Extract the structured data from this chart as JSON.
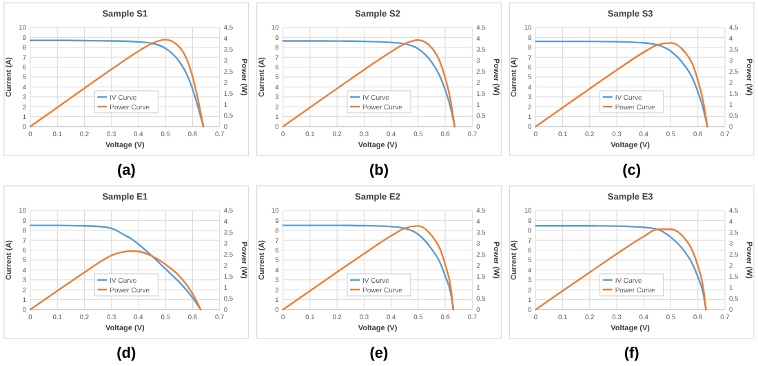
{
  "chart_data": [
    {
      "type": "line",
      "title": "Sample S1",
      "xlabel": "Voltage (V)",
      "ylabel": "Current (A)",
      "y2label": "Power (W)",
      "xlim": [
        0,
        0.7
      ],
      "xticks": [
        0,
        0.1,
        0.2,
        0.3,
        0.4,
        0.5,
        0.6,
        0.7
      ],
      "ylim": [
        0,
        10
      ],
      "yticks": [
        0,
        1,
        2,
        3,
        4,
        5,
        6,
        7,
        8,
        9,
        10
      ],
      "y2lim": [
        0,
        4.5
      ],
      "y2ticks": [
        0,
        0.5,
        1,
        1.5,
        2,
        2.5,
        3,
        3.5,
        4,
        4.5
      ],
      "grid": true,
      "legend": "center",
      "annotations": [
        "(a)"
      ],
      "series": [
        {
          "name": "IV Curve",
          "color": "#5b9bd5",
          "x": [
            0,
            0.1,
            0.2,
            0.3,
            0.4,
            0.45,
            0.5,
            0.55,
            0.58,
            0.6,
            0.62,
            0.64
          ],
          "values": [
            8.7,
            8.7,
            8.68,
            8.65,
            8.55,
            8.4,
            7.9,
            6.6,
            5.2,
            3.8,
            2.0,
            0
          ]
        },
        {
          "name": "Power Curve",
          "color": "#ed7d31",
          "axis": "y2",
          "x": [
            0,
            0.1,
            0.2,
            0.3,
            0.4,
            0.45,
            0.5,
            0.55,
            0.58,
            0.6,
            0.62,
            0.64
          ],
          "values": [
            0,
            0.87,
            1.74,
            2.6,
            3.42,
            3.78,
            3.95,
            3.63,
            3.02,
            2.28,
            1.24,
            0
          ]
        }
      ]
    },
    {
      "type": "line",
      "title": "Sample S2",
      "xlabel": "Voltage (V)",
      "ylabel": "Current (A)",
      "y2label": "Power (W)",
      "xlim": [
        0,
        0.7
      ],
      "xticks": [
        0,
        0.1,
        0.2,
        0.3,
        0.4,
        0.5,
        0.6,
        0.7
      ],
      "ylim": [
        0,
        10
      ],
      "yticks": [
        0,
        1,
        2,
        3,
        4,
        5,
        6,
        7,
        8,
        9,
        10
      ],
      "y2lim": [
        0,
        4.5
      ],
      "y2ticks": [
        0,
        0.5,
        1,
        1.5,
        2,
        2.5,
        3,
        3.5,
        4,
        4.5
      ],
      "grid": true,
      "legend": "center",
      "annotations": [
        "(b)"
      ],
      "series": [
        {
          "name": "IV Curve",
          "color": "#5b9bd5",
          "x": [
            0,
            0.1,
            0.2,
            0.3,
            0.4,
            0.45,
            0.5,
            0.55,
            0.58,
            0.6,
            0.62,
            0.635
          ],
          "values": [
            8.65,
            8.65,
            8.64,
            8.6,
            8.5,
            8.35,
            7.85,
            6.5,
            5.1,
            3.7,
            1.9,
            0
          ]
        },
        {
          "name": "Power Curve",
          "color": "#ed7d31",
          "axis": "y2",
          "x": [
            0,
            0.1,
            0.2,
            0.3,
            0.4,
            0.45,
            0.5,
            0.55,
            0.58,
            0.6,
            0.62,
            0.635
          ],
          "values": [
            0,
            0.87,
            1.73,
            2.58,
            3.4,
            3.76,
            3.93,
            3.58,
            2.96,
            2.22,
            1.18,
            0
          ]
        }
      ]
    },
    {
      "type": "line",
      "title": "Sample S3",
      "xlabel": "Voltage (V)",
      "ylabel": "Current (A)",
      "y2label": "Power (W)",
      "xlim": [
        0,
        0.7
      ],
      "xticks": [
        0,
        0.1,
        0.2,
        0.3,
        0.4,
        0.5,
        0.6,
        0.7
      ],
      "ylim": [
        0,
        10
      ],
      "yticks": [
        0,
        1,
        2,
        3,
        4,
        5,
        6,
        7,
        8,
        9,
        10
      ],
      "y2lim": [
        0,
        4.5
      ],
      "y2ticks": [
        0,
        0.5,
        1,
        1.5,
        2,
        2.5,
        3,
        3.5,
        4,
        4.5
      ],
      "grid": true,
      "legend": "center",
      "annotations": [
        "(c)"
      ],
      "series": [
        {
          "name": "IV Curve",
          "color": "#5b9bd5",
          "x": [
            0,
            0.1,
            0.2,
            0.3,
            0.4,
            0.45,
            0.5,
            0.55,
            0.58,
            0.6,
            0.62,
            0.635
          ],
          "values": [
            8.6,
            8.6,
            8.6,
            8.57,
            8.45,
            8.25,
            7.6,
            6.2,
            4.9,
            3.5,
            1.8,
            0
          ]
        },
        {
          "name": "Power Curve",
          "color": "#ed7d31",
          "axis": "y2",
          "x": [
            0,
            0.1,
            0.2,
            0.3,
            0.4,
            0.45,
            0.5,
            0.55,
            0.58,
            0.6,
            0.62,
            0.635
          ],
          "values": [
            0,
            0.86,
            1.72,
            2.57,
            3.38,
            3.71,
            3.8,
            3.41,
            2.84,
            2.1,
            1.12,
            0
          ]
        }
      ]
    },
    {
      "type": "line",
      "title": "Sample E1",
      "xlabel": "Voltage (V)",
      "ylabel": "Current (A)",
      "y2label": "Power (W)",
      "xlim": [
        0,
        0.7
      ],
      "xticks": [
        0,
        0.1,
        0.2,
        0.3,
        0.4,
        0.5,
        0.6,
        0.7
      ],
      "ylim": [
        0,
        10
      ],
      "yticks": [
        0,
        1,
        2,
        3,
        4,
        5,
        6,
        7,
        8,
        9,
        10
      ],
      "y2lim": [
        0,
        4.5
      ],
      "y2ticks": [
        0,
        0.5,
        1,
        1.5,
        2,
        2.5,
        3,
        3.5,
        4,
        4.5
      ],
      "grid": true,
      "legend": "center",
      "annotations": [
        "(d)"
      ],
      "series": [
        {
          "name": "IV Curve",
          "color": "#5b9bd5",
          "x": [
            0,
            0.1,
            0.2,
            0.25,
            0.3,
            0.35,
            0.37,
            0.4,
            0.45,
            0.5,
            0.55,
            0.6,
            0.63
          ],
          "values": [
            8.5,
            8.5,
            8.45,
            8.4,
            8.2,
            7.5,
            7.2,
            6.6,
            5.4,
            4.1,
            2.8,
            1.2,
            0
          ]
        },
        {
          "name": "Power Curve",
          "color": "#ed7d31",
          "axis": "y2",
          "x": [
            0,
            0.1,
            0.2,
            0.25,
            0.3,
            0.35,
            0.37,
            0.4,
            0.45,
            0.5,
            0.55,
            0.6,
            0.63
          ],
          "values": [
            0,
            0.85,
            1.69,
            2.1,
            2.46,
            2.63,
            2.66,
            2.64,
            2.43,
            2.05,
            1.54,
            0.72,
            0
          ]
        }
      ]
    },
    {
      "type": "line",
      "title": "Sample E2",
      "xlabel": "Voltage (V)",
      "ylabel": "Current (A)",
      "y2label": "Power (W)",
      "xlim": [
        0,
        0.7
      ],
      "xticks": [
        0,
        0.1,
        0.2,
        0.3,
        0.4,
        0.5,
        0.6,
        0.7
      ],
      "ylim": [
        0,
        10
      ],
      "yticks": [
        0,
        1,
        2,
        3,
        4,
        5,
        6,
        7,
        8,
        9,
        10
      ],
      "y2lim": [
        0,
        4.5
      ],
      "y2ticks": [
        0,
        0.5,
        1,
        1.5,
        2,
        2.5,
        3,
        3.5,
        4,
        4.5
      ],
      "grid": true,
      "legend": "center",
      "annotations": [
        "(e)"
      ],
      "series": [
        {
          "name": "IV Curve",
          "color": "#5b9bd5",
          "x": [
            0,
            0.1,
            0.2,
            0.3,
            0.4,
            0.45,
            0.5,
            0.55,
            0.58,
            0.6,
            0.62,
            0.63
          ],
          "values": [
            8.5,
            8.5,
            8.5,
            8.47,
            8.38,
            8.2,
            7.6,
            6.1,
            4.8,
            3.4,
            1.7,
            0
          ]
        },
        {
          "name": "Power Curve",
          "color": "#ed7d31",
          "axis": "y2",
          "x": [
            0,
            0.1,
            0.2,
            0.3,
            0.4,
            0.45,
            0.5,
            0.55,
            0.58,
            0.6,
            0.62,
            0.63
          ],
          "values": [
            0,
            0.85,
            1.7,
            2.54,
            3.35,
            3.69,
            3.8,
            3.36,
            2.78,
            2.04,
            1.05,
            0
          ]
        }
      ]
    },
    {
      "type": "line",
      "title": "Sample E3",
      "xlabel": "Voltage (V)",
      "ylabel": "Current (A)",
      "y2label": "Power (W)",
      "xlim": [
        0,
        0.7
      ],
      "xticks": [
        0,
        0.1,
        0.2,
        0.3,
        0.4,
        0.5,
        0.6,
        0.7
      ],
      "ylim": [
        0,
        10
      ],
      "yticks": [
        0,
        1,
        2,
        3,
        4,
        5,
        6,
        7,
        8,
        9,
        10
      ],
      "y2lim": [
        0,
        4.5
      ],
      "y2ticks": [
        0,
        0.5,
        1,
        1.5,
        2,
        2.5,
        3,
        3.5,
        4,
        4.5
      ],
      "grid": true,
      "legend": "center",
      "annotations": [
        "(f)"
      ],
      "series": [
        {
          "name": "IV Curve",
          "color": "#5b9bd5",
          "x": [
            0,
            0.1,
            0.2,
            0.3,
            0.4,
            0.45,
            0.5,
            0.55,
            0.58,
            0.6,
            0.62,
            0.63
          ],
          "values": [
            8.45,
            8.45,
            8.45,
            8.43,
            8.3,
            8.1,
            7.3,
            5.9,
            4.6,
            3.3,
            1.6,
            0
          ]
        },
        {
          "name": "Power Curve",
          "color": "#ed7d31",
          "axis": "y2",
          "x": [
            0,
            0.1,
            0.2,
            0.3,
            0.4,
            0.45,
            0.5,
            0.55,
            0.58,
            0.6,
            0.62,
            0.63
          ],
          "values": [
            0,
            0.85,
            1.69,
            2.53,
            3.32,
            3.65,
            3.65,
            3.25,
            2.67,
            1.98,
            0.99,
            0
          ]
        }
      ]
    }
  ]
}
